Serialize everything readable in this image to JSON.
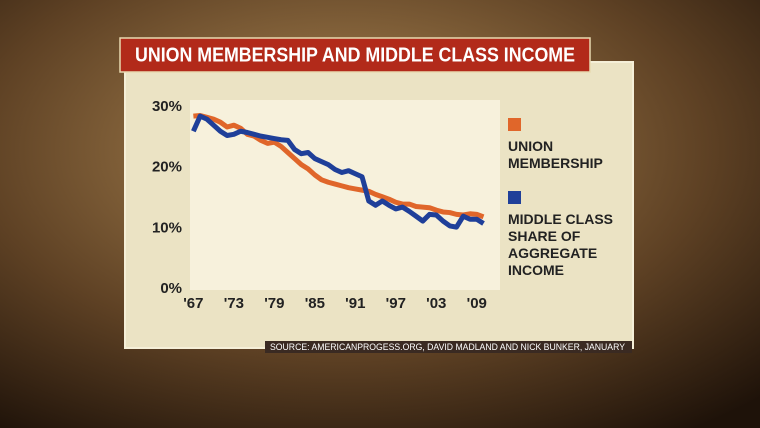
{
  "chart_data": {
    "type": "line",
    "title": "UNION MEMBERSHIP AND MIDDLE CLASS INCOME",
    "source": "SOURCE: AMERICANPROGESS.ORG, DAVID MADLAND AND NICK BUNKER, JANUARY",
    "x": [
      1967,
      1968,
      1969,
      1970,
      1971,
      1972,
      1973,
      1974,
      1975,
      1976,
      1977,
      1978,
      1979,
      1980,
      1981,
      1982,
      1983,
      1984,
      1985,
      1986,
      1987,
      1988,
      1989,
      1990,
      1991,
      1992,
      1993,
      1994,
      1995,
      1996,
      1997,
      1998,
      1999,
      2000,
      2001,
      2002,
      2003,
      2004,
      2005,
      2006,
      2007,
      2008,
      2009,
      2010
    ],
    "series": [
      {
        "name": "UNION MEMBERSHIP",
        "color": "#e0662a",
        "values": [
          28.5,
          28.6,
          28.3,
          28.0,
          27.5,
          26.7,
          27.0,
          26.5,
          25.5,
          25.2,
          24.5,
          24.0,
          24.2,
          23.5,
          22.5,
          21.5,
          20.5,
          19.8,
          18.8,
          18.0,
          17.6,
          17.3,
          17.0,
          16.7,
          16.5,
          16.3,
          16.1,
          15.6,
          15.2,
          14.8,
          14.3,
          14.0,
          14.0,
          13.6,
          13.5,
          13.4,
          13.0,
          12.7,
          12.6,
          12.3,
          12.2,
          12.4,
          12.3,
          11.9
        ]
      },
      {
        "name": "MIDDLE CLASS SHARE OF AGGREGATE INCOME",
        "color": "#1f3f99",
        "values": [
          26.0,
          28.5,
          28.0,
          27.0,
          26.0,
          25.3,
          25.5,
          26.0,
          25.8,
          25.5,
          25.2,
          25.0,
          24.8,
          24.6,
          24.5,
          23.0,
          22.3,
          22.5,
          21.5,
          21.0,
          20.5,
          19.7,
          19.2,
          19.5,
          19.0,
          18.5,
          14.5,
          13.8,
          14.5,
          13.8,
          13.2,
          13.5,
          12.8,
          12.0,
          11.2,
          12.3,
          12.2,
          11.2,
          10.4,
          10.2,
          12.0,
          11.5,
          11.5,
          10.8
        ]
      }
    ],
    "xlim": [
      1966.5,
      2012
    ],
    "ylim": [
      0,
      30
    ],
    "xticks": [
      {
        "value": 1967,
        "label": "'67"
      },
      {
        "value": 1973,
        "label": "'73"
      },
      {
        "value": 1979,
        "label": "'79"
      },
      {
        "value": 1985,
        "label": "'85"
      },
      {
        "value": 1991,
        "label": "'91"
      },
      {
        "value": 1997,
        "label": "'97"
      },
      {
        "value": 2003,
        "label": "'03"
      },
      {
        "value": 2009,
        "label": "'09"
      }
    ],
    "yticks": [
      {
        "value": 0,
        "label": "0%"
      },
      {
        "value": 10,
        "label": "10%"
      },
      {
        "value": 20,
        "label": "20%"
      },
      {
        "value": 30,
        "label": "30%"
      }
    ],
    "legend": "right"
  }
}
